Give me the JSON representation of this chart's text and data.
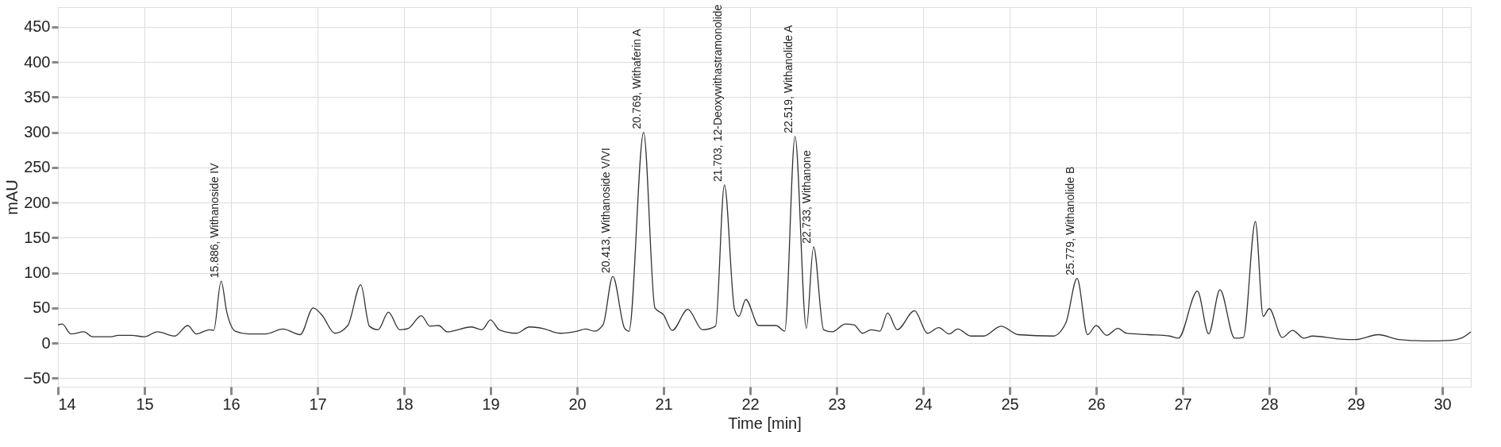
{
  "chart_data": {
    "type": "line",
    "xlabel": "Time [min]",
    "ylabel": "mAU",
    "xlim": [
      14,
      30.33
    ],
    "ylim": [
      -62,
      478
    ],
    "xticks": [
      14,
      15,
      16,
      17,
      18,
      19,
      20,
      21,
      22,
      23,
      24,
      25,
      26,
      27,
      28,
      29,
      30
    ],
    "yticks": [
      -50,
      0,
      50,
      100,
      150,
      200,
      250,
      300,
      350,
      400,
      450
    ],
    "grid": true,
    "marker": "none",
    "line_style": "solid",
    "series": [
      {
        "color": "#333333",
        "x": [
          14.0,
          14.05,
          14.15,
          14.3,
          14.4,
          14.6,
          14.7,
          14.85,
          15.0,
          15.15,
          15.35,
          15.5,
          15.6,
          15.75,
          15.8,
          15.886,
          15.95,
          16.05,
          16.2,
          16.4,
          16.6,
          16.8,
          16.95,
          17.05,
          17.2,
          17.35,
          17.5,
          17.6,
          17.7,
          17.82,
          17.95,
          18.05,
          18.2,
          18.3,
          18.4,
          18.5,
          18.78,
          18.9,
          19.0,
          19.1,
          19.3,
          19.45,
          19.6,
          19.8,
          20.0,
          20.1,
          20.2,
          20.3,
          20.413,
          20.55,
          20.6,
          20.769,
          20.9,
          21.0,
          21.1,
          21.28,
          21.45,
          21.6,
          21.703,
          21.82,
          21.87,
          21.95,
          22.1,
          22.3,
          22.4,
          22.519,
          22.65,
          22.733,
          22.85,
          22.95,
          23.1,
          23.2,
          23.3,
          23.4,
          23.5,
          23.59,
          23.7,
          23.9,
          24.05,
          24.18,
          24.3,
          24.4,
          24.55,
          24.7,
          24.9,
          25.1,
          25.5,
          25.65,
          25.779,
          25.9,
          26.0,
          26.12,
          26.25,
          26.35,
          26.6,
          26.85,
          26.95,
          27.17,
          27.3,
          27.43,
          27.6,
          27.7,
          27.84,
          27.93,
          28.0,
          28.15,
          28.27,
          28.4,
          28.5,
          28.8,
          29.0,
          29.26,
          29.5,
          29.8,
          30.1,
          30.22,
          30.33
        ],
        "values": [
          26,
          27,
          13,
          16,
          9,
          9,
          11,
          11,
          9,
          16,
          10,
          25,
          13,
          19,
          18,
          88,
          45,
          17,
          13,
          13,
          20,
          12,
          50,
          40,
          14,
          25,
          83,
          24,
          19,
          44,
          19,
          21,
          39,
          24,
          25,
          16,
          23,
          19,
          33,
          19,
          14,
          23,
          21,
          14,
          17,
          20,
          17,
          26,
          95,
          21,
          17,
          300,
          50,
          40,
          18,
          48,
          19,
          24,
          225,
          48,
          38,
          62,
          25,
          25,
          17,
          294,
          21,
          137,
          19,
          16,
          27,
          26,
          14,
          19,
          17,
          43,
          19,
          46,
          14,
          22,
          13,
          20,
          10,
          10,
          24,
          12,
          10,
          29,
          92,
          12,
          25,
          11,
          21,
          14,
          12,
          10,
          7,
          74,
          13,
          76,
          7,
          8,
          173,
          38,
          49,
          8,
          18,
          7,
          10,
          6,
          5,
          12,
          5,
          3,
          4,
          7,
          16
        ]
      }
    ],
    "annotations": [
      {
        "text": "15.886, Withanoside IV",
        "x": 15.886,
        "y": 88
      },
      {
        "text": "20.413, Withanoside V/VI",
        "x": 20.413,
        "y": 95
      },
      {
        "text": "20.769, Withaferin A",
        "x": 20.769,
        "y": 300
      },
      {
        "text": "21.703, 12-Deoxywithastramonolide",
        "x": 21.703,
        "y": 225
      },
      {
        "text": "22.519, Withanolide A",
        "x": 22.519,
        "y": 294
      },
      {
        "text": "22.733, Withanone",
        "x": 22.733,
        "y": 137
      },
      {
        "text": "25.779, Withanolide B",
        "x": 25.779,
        "y": 92
      }
    ]
  }
}
